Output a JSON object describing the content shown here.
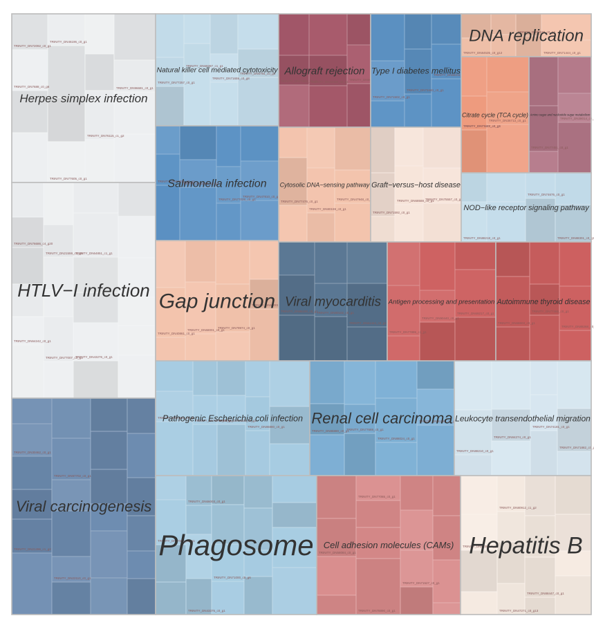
{
  "chart_data": {
    "type": "treemap",
    "title": "",
    "colors": {
      "grey": "#edeff1",
      "peach": "#f3c3ac",
      "orange": "#ee9b7e",
      "lightpeach": "#f6e3d8",
      "cream": "#f7ece3",
      "lightblue": "#c3dcea",
      "paleblue": "#d6e6f0",
      "skyblue": "#a7cce2",
      "midblue": "#7fb1d6",
      "blue": "#5d93c5",
      "steel": "#6d8cb0",
      "slate": "#5b7894",
      "red": "#cd6060",
      "rose": "#d88a8a",
      "wine": "#a85a6c",
      "mauve": "#b37788"
    },
    "tiles": [
      {
        "name": "Herpes simplex infection",
        "color": "grey",
        "subs": [
          "TRINITY_DN7688_c0_g6",
          "TRINITY_DN46196_c0_g1",
          "TRINITY_DN77605_c0_g1",
          "TRINITY_DN76115_c1_g2",
          "TRINITY_DN96681_c0_g1",
          "TRINITY_DN72092_c0_g1"
        ]
      },
      {
        "name": "HTLV−I infection",
        "color": "grey",
        "subs": [
          "TRINITY_DN76686_c4_g20",
          "TRINITY_DN64242_c0_g1",
          "TRINITY_DN21559_c0_g8",
          "TRINITY_DN77007_c0_g1",
          "TRINITY_DN64851_c1_g1",
          "TRINITY_DN43276_c0_g1"
        ]
      },
      {
        "name": "Viral carcinogenesis",
        "color": "steel",
        "subs": [
          "TRINITY_DN30462_c0_g1",
          "TRINITY_DN21496_c1_g2",
          "TRINITY_DN97702_c0_g1",
          "TRINITY_DN22110_c0_g1"
        ]
      },
      {
        "name": "Natural killer cell mediated cytotoxicity",
        "color": "lightblue",
        "subs": [
          "TRINITY_DN77257_c0_g1",
          "TRINITY_DN69287_c1_g1",
          "TRINITY_DN71659_c0_g8",
          "TRINITY_DN6784_c0_g1"
        ]
      },
      {
        "name": "Salmonella infection",
        "color": "blue",
        "subs": [
          "TRINITY_DN84676_c0_g1",
          "TRINITY_DN22006_c0_g1",
          "TRINITY_DN77028_c0_g1",
          "TRINITY_DN47810_c0_g1"
        ]
      },
      {
        "name": "Gap junction",
        "color": "peach",
        "subs": [
          "TRINITY_DN40861_c0_g1",
          "TRINITY_DN68001_c0_g1",
          "TRINITY_DN79974_c0_g1",
          "TRINITY_DN52001_c0_g1"
        ]
      },
      {
        "name": "Allograft rejection",
        "color": "wine",
        "subs": [
          "TRINITY_DN77563_c0_g1",
          "TRINITY_DN44456_c0_g1",
          "TRINITY_DN55062_c0_g1"
        ]
      },
      {
        "name": "Type I diabetes mellitus",
        "color": "blue",
        "subs": [
          "TRINITY_DN71502_c0_g1",
          "TRINITY_DN73440_c0_g1",
          "TRINITY_DN58211_c0_g1"
        ]
      },
      {
        "name": "DNA replication",
        "color": "peach",
        "subs": [
          "TRINITY_DN84535_c0_g12",
          "TRINITY_DN75528_c0_g4",
          "TRINITY_DN71444_c0_g1"
        ]
      },
      {
        "name": "Citrate cycle (TCA cycle)",
        "color": "orange",
        "subs": [
          "TRINITY_DN77277_c0_g3",
          "TRINITY_DN36713_c0_g1",
          "TRINITY_DN71444_c0_g1"
        ]
      },
      {
        "name": "Amino sugar and nucleotide sugar metabolism",
        "color": "mauve",
        "subs": [
          "TRINITY_DN77451_c0_g1",
          "TRINITY_DN38014_c0_g1"
        ]
      },
      {
        "name": "Cytosolic DNA−sensing pathway",
        "color": "peach",
        "subs": [
          "TRINITY_DN77476_c0_g1",
          "TRINITY_DN80159_c0_g1",
          "TRINITY_DN47948_c0_g1"
        ]
      },
      {
        "name": "Graft−versus−host disease",
        "color": "lightpeach",
        "subs": [
          "TRINITY_DN71592_c0_g1",
          "TRINITY_DN68588_c0_g1",
          "TRINITY_DN75557_c0_g1"
        ]
      },
      {
        "name": "NOD−like receptor signaling pathway",
        "color": "lightblue",
        "subs": [
          "TRINITY_DN88218_c0_g1",
          "TRINITY_DN74676_c0_g1",
          "TRINITY_DN88301_c0_g1"
        ]
      },
      {
        "name": "Viral myocarditis",
        "color": "slate",
        "subs": [
          "TRINITY_DN86190_c0_g1",
          "TRINITY_DN80102_c0_g1",
          "TRINITY_DN61444_c0_g1"
        ]
      },
      {
        "name": "Antigen processing and presentation",
        "color": "red",
        "subs": [
          "TRINITY_DN77885_c1_g1",
          "TRINITY_DN90440_c0_g1",
          "TRINITY_DN69217_c0_g1"
        ]
      },
      {
        "name": "Autoimmune thyroid disease",
        "color": "red",
        "subs": [
          "TRINITY_DN68603_c0_g1",
          "TRINITY_DN77465_c0_g1",
          "TRINITY_DN88268_c0_g1"
        ]
      },
      {
        "name": "Pathogenic Escherichia coli infection",
        "color": "skyblue",
        "subs": [
          "TRINITY_DN67691_c0_g1",
          "TRINITY_DN76756_c0_g1",
          "TRINITY_DN74028_c0_g1",
          "TRINITY_DN86880_c0_g1"
        ]
      },
      {
        "name": "Renal cell carcinoma",
        "color": "midblue",
        "subs": [
          "TRINITY_DN86880_c0_g1",
          "TRINITY_DN77669_c0_g1",
          "TRINITY_DN88024_c0_g1",
          "TRINITY_DN91285_c0_g1"
        ]
      },
      {
        "name": "Leukocyte transendothelial migration",
        "color": "paleblue",
        "subs": [
          "TRINITY_DN88210_c0_g1",
          "TRINITY_DN84274_c0_g1",
          "TRINITY_DN74181_c0_g1",
          "TRINITY_DN71882_c0_g1"
        ]
      },
      {
        "name": "Phagosome",
        "color": "skyblue",
        "subs": [
          "TRINITY_DN67816_c0_g1",
          "TRINITY_DN66003_c0_g1",
          "TRINITY_DN43375_c0_g1",
          "TRINITY_DN71000_c0_g6"
        ]
      },
      {
        "name": "Cell adhesion molecules (CAMs)",
        "color": "rose",
        "subs": [
          "TRINITY_DN58084_c0_g1",
          "TRINITY_DN77065_c0_g1",
          "TRINITY_DN78890_c0_g1",
          "TRINITY_DN71527_c0_g1"
        ]
      },
      {
        "name": "Hepatitis B",
        "color": "cream",
        "subs": [
          "TRINITY_DN8635_c1_g1",
          "TRINITY_DN80912_c1_g2",
          "TRINITY_DN47271_c0_g13",
          "TRINITY_DN88447_c0_g1"
        ]
      }
    ]
  }
}
